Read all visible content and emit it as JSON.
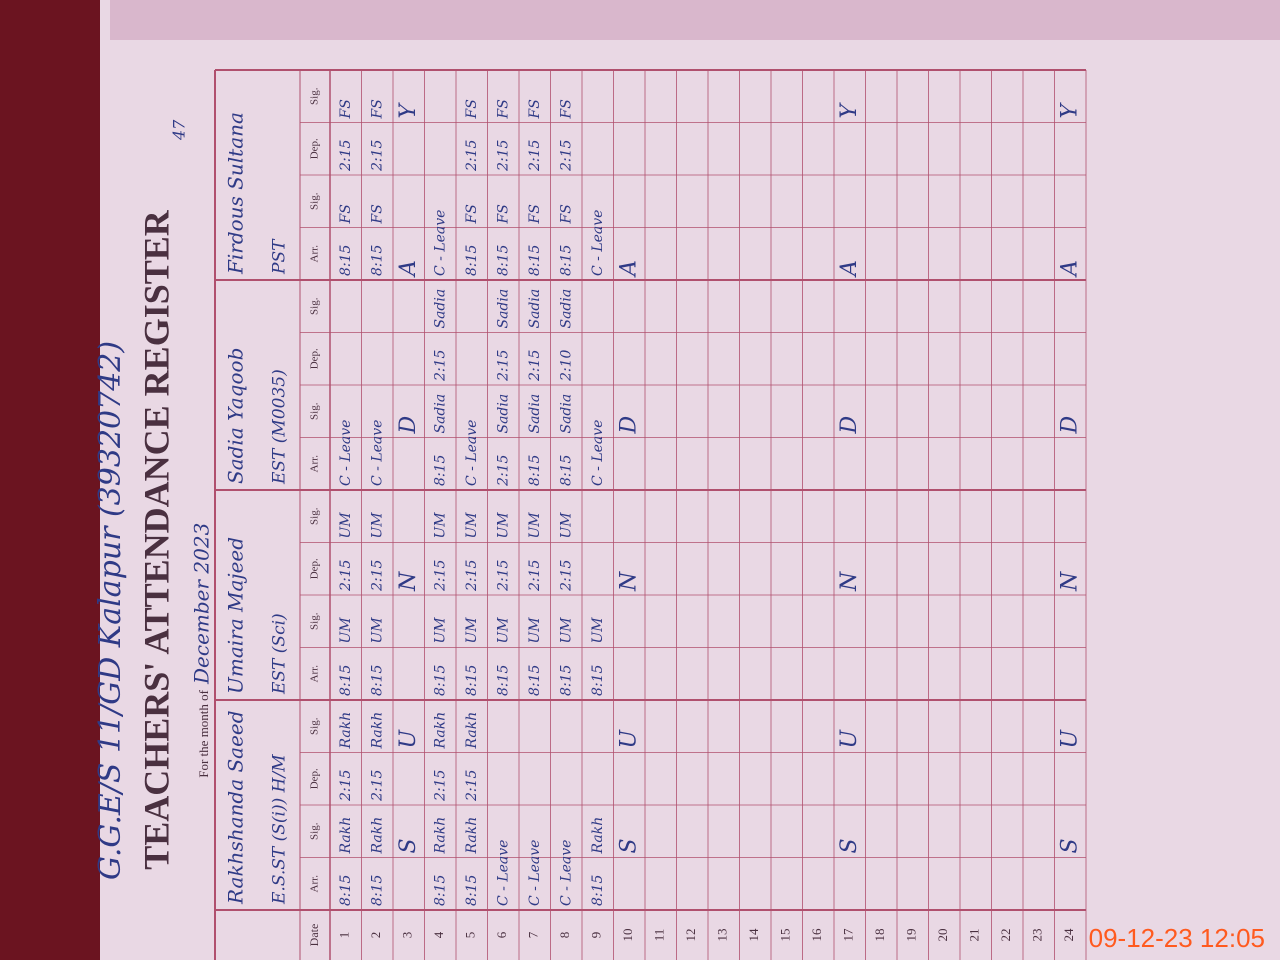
{
  "header": {
    "school": "G.G.E/S 11/GD Kalapur (39320742)",
    "title": "TEACHERS' ATTENDANCE REGISTER",
    "month_label": "For the month of",
    "month": "December 2023",
    "page": "47"
  },
  "table": {
    "date_header": "Date",
    "sub_headers": [
      "Arr.",
      "Sig.",
      "Dep.",
      "Sig."
    ],
    "teachers": [
      {
        "name": "Rakhshanda Saeed",
        "designation": "E.S.ST (S(i)) H/M"
      },
      {
        "name": "Umaira Majeed",
        "designation": "EST (Sci)"
      },
      {
        "name": "Sadia Yaqoob",
        "designation": "EST (M0035)"
      },
      {
        "name": "Firdous Sultana",
        "designation": "PST"
      }
    ],
    "rows": [
      {
        "date": "1",
        "cells": [
          "8:15",
          "Rakh",
          "2:15",
          "Rakh",
          "8:15",
          "UM",
          "2:15",
          "UM",
          "C - Leave",
          null,
          null,
          null,
          "8:15",
          "FS",
          "2:15",
          "FS"
        ]
      },
      {
        "date": "2",
        "cells": [
          "8:15",
          "Rakh",
          "2:15",
          "Rakh",
          "8:15",
          "UM",
          "2:15",
          "UM",
          "C - Leave",
          null,
          null,
          null,
          "8:15",
          "FS",
          "2:15",
          "FS"
        ]
      },
      {
        "date": "3",
        "cells": [
          null,
          "S",
          null,
          "U",
          null,
          null,
          "N",
          null,
          null,
          "D",
          null,
          null,
          "A",
          null,
          null,
          "Y"
        ]
      },
      {
        "date": "4",
        "cells": [
          "8:15",
          "Rakh",
          "2:15",
          "Rakh",
          "8:15",
          "UM",
          "2:15",
          "UM",
          "8:15",
          "Sadia",
          "2:15",
          "Sadia",
          "C - Leave",
          null,
          null,
          null
        ]
      },
      {
        "date": "5",
        "cells": [
          "8:15",
          "Rakh",
          "2:15",
          "Rakh",
          "8:15",
          "UM",
          "2:15",
          "UM",
          "C - Leave",
          null,
          null,
          null,
          "8:15",
          "FS",
          "2:15",
          "FS"
        ]
      },
      {
        "date": "6",
        "cells": [
          "C - Leave",
          null,
          null,
          null,
          "8:15",
          "UM",
          "2:15",
          "UM",
          "2:15",
          "Sadia",
          "2:15",
          "Sadia",
          "8:15",
          "FS",
          "2:15",
          "FS"
        ]
      },
      {
        "date": "7",
        "cells": [
          "C - Leave",
          null,
          null,
          null,
          "8:15",
          "UM",
          "2:15",
          "UM",
          "8:15",
          "Sadia",
          "2:15",
          "Sadia",
          "8:15",
          "FS",
          "2:15",
          "FS"
        ]
      },
      {
        "date": "8",
        "cells": [
          "C - Leave",
          null,
          null,
          null,
          "8:15",
          "UM",
          "2:15",
          "UM",
          "8:15",
          "Sadia",
          "2:10",
          "Sadia",
          "8:15",
          "FS",
          "2:15",
          "FS"
        ]
      },
      {
        "date": "9",
        "cells": [
          "8:15",
          "Rakh",
          null,
          null,
          "8:15",
          "UM",
          null,
          null,
          "C - Leave",
          null,
          null,
          null,
          "C - Leave",
          null,
          null,
          null
        ]
      },
      {
        "date": "10",
        "cells": [
          null,
          "S",
          null,
          "U",
          null,
          null,
          "N",
          null,
          null,
          "D",
          null,
          null,
          "A",
          null,
          null,
          null
        ]
      },
      {
        "date": "11"
      },
      {
        "date": "12"
      },
      {
        "date": "13"
      },
      {
        "date": "14"
      },
      {
        "date": "15"
      },
      {
        "date": "16"
      },
      {
        "date": "17",
        "cells": [
          null,
          "S",
          null,
          "U",
          null,
          null,
          "N",
          null,
          null,
          "D",
          null,
          null,
          "A",
          null,
          null,
          "Y"
        ]
      },
      {
        "date": "18"
      },
      {
        "date": "19"
      },
      {
        "date": "20"
      },
      {
        "date": "21"
      },
      {
        "date": "22"
      },
      {
        "date": "23"
      },
      {
        "date": "24",
        "cells": [
          null,
          "S",
          null,
          "U",
          null,
          null,
          "N",
          null,
          null,
          "D",
          null,
          null,
          "A",
          null,
          null,
          "Y"
        ]
      }
    ]
  },
  "camera_stamp": "09-12-23  12:05"
}
